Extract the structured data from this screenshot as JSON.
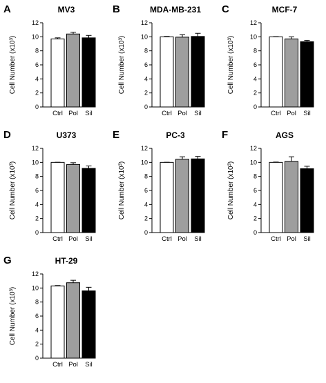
{
  "chart_data": [
    {
      "panel": "A",
      "title": "MV3",
      "type": "bar",
      "categories": [
        "Ctrl",
        "Pol",
        "Sil"
      ],
      "values": [
        9.7,
        10.4,
        9.85
      ],
      "errors": [
        0.15,
        0.25,
        0.35
      ],
      "ylabel": "Cell Number (x10³)",
      "ylim": [
        0,
        12
      ],
      "yticks": [
        0,
        2,
        4,
        6,
        8,
        10,
        12
      ],
      "bar_colors": [
        "#ffffff",
        "#9e9e9e",
        "#000000"
      ]
    },
    {
      "panel": "B",
      "title": "MDA-MB-231",
      "type": "bar",
      "categories": [
        "Ctrl",
        "Pol",
        "Sil"
      ],
      "values": [
        10.0,
        9.95,
        10.05
      ],
      "errors": [
        0.05,
        0.35,
        0.45
      ],
      "ylabel": "Cell Number (x10³)",
      "ylim": [
        0,
        12
      ],
      "yticks": [
        0,
        2,
        4,
        6,
        8,
        10,
        12
      ],
      "bar_colors": [
        "#ffffff",
        "#9e9e9e",
        "#000000"
      ]
    },
    {
      "panel": "C",
      "title": "MCF-7",
      "type": "bar",
      "categories": [
        "Ctrl",
        "Pol",
        "Sil"
      ],
      "values": [
        10.0,
        9.7,
        9.3
      ],
      "errors": [
        0.02,
        0.3,
        0.2
      ],
      "ylabel": "Cell Number (x10³)",
      "ylim": [
        0,
        12
      ],
      "yticks": [
        0,
        2,
        4,
        6,
        8,
        10,
        12
      ],
      "bar_colors": [
        "#ffffff",
        "#9e9e9e",
        "#000000"
      ]
    },
    {
      "panel": "D",
      "title": "U373",
      "type": "bar",
      "categories": [
        "Ctrl",
        "Pol",
        "Sil"
      ],
      "values": [
        10.0,
        9.7,
        9.15
      ],
      "errors": [
        0.02,
        0.25,
        0.35
      ],
      "ylabel": "Cell Number (x10³)",
      "ylim": [
        0,
        12
      ],
      "yticks": [
        0,
        2,
        4,
        6,
        8,
        10,
        12
      ],
      "bar_colors": [
        "#ffffff",
        "#9e9e9e",
        "#000000"
      ]
    },
    {
      "panel": "E",
      "title": "PC-3",
      "type": "bar",
      "categories": [
        "Ctrl",
        "Pol",
        "Sil"
      ],
      "values": [
        10.0,
        10.45,
        10.5
      ],
      "errors": [
        0.02,
        0.35,
        0.35
      ],
      "ylabel": "Cell Number (x10³)",
      "ylim": [
        0,
        12
      ],
      "yticks": [
        0,
        2,
        4,
        6,
        8,
        10,
        12
      ],
      "bar_colors": [
        "#ffffff",
        "#9e9e9e",
        "#000000"
      ]
    },
    {
      "panel": "F",
      "title": "AGS",
      "type": "bar",
      "categories": [
        "Ctrl",
        "Pol",
        "Sil"
      ],
      "values": [
        10.0,
        10.15,
        9.1
      ],
      "errors": [
        0.05,
        0.65,
        0.35
      ],
      "ylabel": "Cell Number (x10³)",
      "ylim": [
        0,
        12
      ],
      "yticks": [
        0,
        2,
        4,
        6,
        8,
        10,
        12
      ],
      "bar_colors": [
        "#ffffff",
        "#9e9e9e",
        "#000000"
      ]
    },
    {
      "panel": "G",
      "title": "HT-29",
      "type": "bar",
      "categories": [
        "Ctrl",
        "Pol",
        "Sil"
      ],
      "values": [
        10.3,
        10.75,
        9.6
      ],
      "errors": [
        0.05,
        0.35,
        0.5
      ],
      "ylabel": "Cell Number (x10³)",
      "ylim": [
        0,
        12
      ],
      "yticks": [
        0,
        2,
        4,
        6,
        8,
        10,
        12
      ],
      "bar_colors": [
        "#ffffff",
        "#9e9e9e",
        "#000000"
      ]
    }
  ]
}
